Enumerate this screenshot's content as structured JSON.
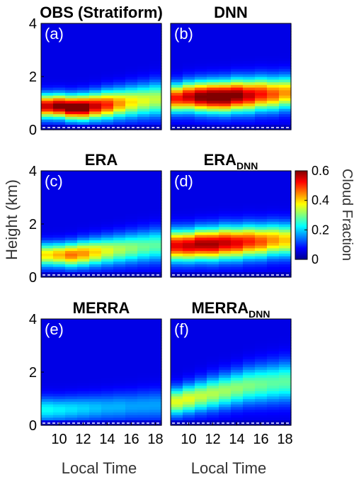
{
  "chart_data": {
    "type": "heatmap",
    "x": [
      9,
      10,
      11,
      12,
      13,
      14,
      15,
      16,
      17,
      18
    ],
    "xticks": [
      "10",
      "12",
      "14",
      "16",
      "18"
    ],
    "xtick_values": [
      10,
      12,
      14,
      16,
      18
    ],
    "xlabel": "Local Time",
    "ylabel": "Height (km)",
    "yticks": [
      "0",
      "2",
      "4"
    ],
    "ytick_values": [
      0,
      2,
      4
    ],
    "ylim": [
      0,
      4
    ],
    "colorbar": {
      "label": "Cloud Fraction",
      "ticks": [
        "0",
        "0.2",
        "0.4",
        "0.6"
      ],
      "tick_values": [
        0,
        0.2,
        0.4,
        0.6
      ],
      "range": [
        0,
        0.6
      ],
      "colormap": "jet"
    },
    "panels": [
      {
        "letter": "(a)",
        "title": "OBS (Stratiform)",
        "title_sub": "",
        "center": [
          0.9,
          0.9,
          0.85,
          0.85,
          0.9,
          0.95,
          1.0,
          1.05,
          1.1,
          1.15
        ],
        "peak": [
          0.5,
          0.55,
          0.58,
          0.57,
          0.5,
          0.45,
          0.38,
          0.33,
          0.3,
          0.28
        ],
        "width": [
          0.42,
          0.42,
          0.43,
          0.45,
          0.47,
          0.5,
          0.52,
          0.55,
          0.57,
          0.6
        ]
      },
      {
        "letter": "(b)",
        "title": "DNN",
        "title_sub": "",
        "center": [
          1.2,
          1.25,
          1.25,
          1.25,
          1.25,
          1.3,
          1.3,
          1.35,
          1.35,
          1.4
        ],
        "peak": [
          0.46,
          0.5,
          0.55,
          0.58,
          0.58,
          0.55,
          0.5,
          0.46,
          0.42,
          0.38
        ],
        "width": [
          0.5,
          0.52,
          0.54,
          0.55,
          0.56,
          0.57,
          0.58,
          0.58,
          0.58,
          0.58
        ]
      },
      {
        "letter": "(c)",
        "title": "ERA",
        "title_sub": "",
        "center": [
          0.85,
          0.85,
          0.85,
          0.9,
          0.95,
          1.0,
          1.05,
          1.1,
          1.15,
          1.2
        ],
        "peak": [
          0.33,
          0.36,
          0.4,
          0.38,
          0.34,
          0.3,
          0.27,
          0.25,
          0.23,
          0.22
        ],
        "width": [
          0.42,
          0.42,
          0.44,
          0.46,
          0.48,
          0.5,
          0.52,
          0.54,
          0.56,
          0.58
        ]
      },
      {
        "letter": "(d)",
        "title": "ERA",
        "title_sub": "DNN",
        "center": [
          1.2,
          1.2,
          1.25,
          1.25,
          1.3,
          1.3,
          1.35,
          1.35,
          1.4,
          1.4
        ],
        "peak": [
          0.48,
          0.5,
          0.52,
          0.52,
          0.5,
          0.48,
          0.45,
          0.42,
          0.38,
          0.35
        ],
        "width": [
          0.55,
          0.55,
          0.56,
          0.57,
          0.58,
          0.58,
          0.58,
          0.58,
          0.58,
          0.58
        ]
      },
      {
        "letter": "(e)",
        "title": "MERRA",
        "title_sub": "",
        "center": [
          0.6,
          0.6,
          0.62,
          0.64,
          0.66,
          0.68,
          0.7,
          0.72,
          0.74,
          0.76
        ],
        "peak": [
          0.17,
          0.16,
          0.15,
          0.14,
          0.13,
          0.12,
          0.12,
          0.11,
          0.11,
          0.11
        ],
        "width": [
          0.45,
          0.45,
          0.46,
          0.47,
          0.48,
          0.5,
          0.51,
          0.52,
          0.54,
          0.55
        ]
      },
      {
        "letter": "(f)",
        "title": "MERRA",
        "title_sub": "DNN",
        "center": [
          0.9,
          1.0,
          1.1,
          1.2,
          1.3,
          1.4,
          1.5,
          1.55,
          1.6,
          1.65
        ],
        "peak": [
          0.3,
          0.3,
          0.28,
          0.27,
          0.26,
          0.25,
          0.24,
          0.23,
          0.22,
          0.22
        ],
        "width": [
          0.5,
          0.52,
          0.55,
          0.58,
          0.6,
          0.62,
          0.65,
          0.68,
          0.7,
          0.72
        ]
      }
    ]
  }
}
